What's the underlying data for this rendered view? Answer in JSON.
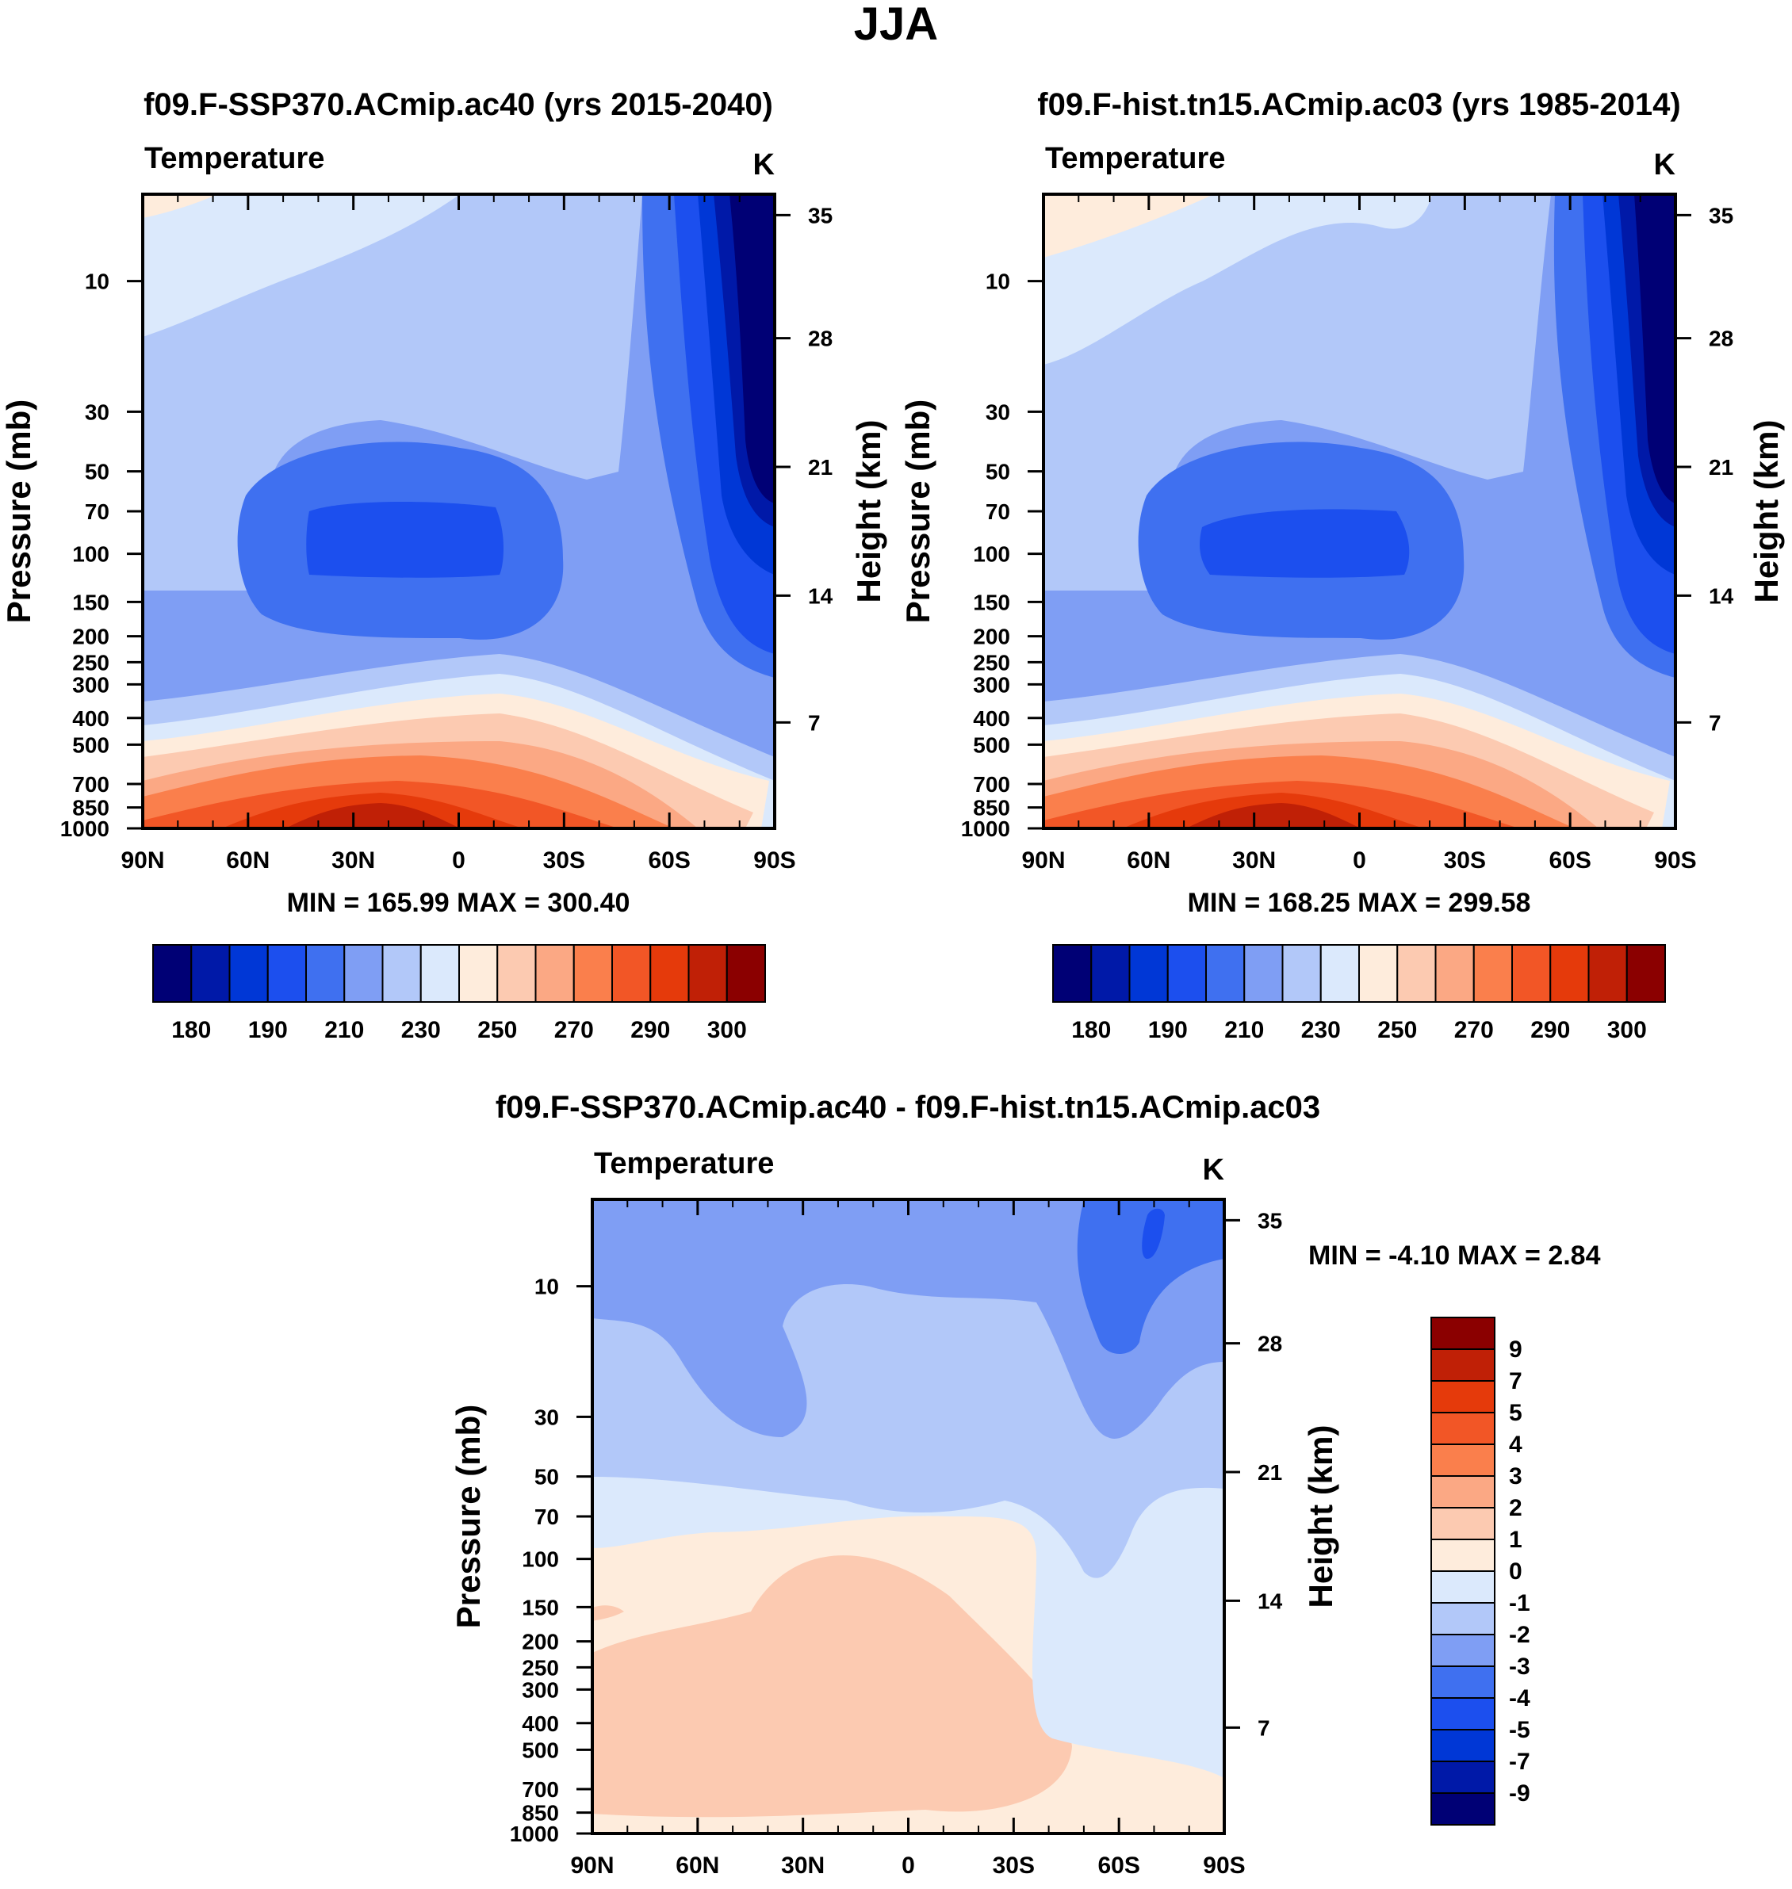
{
  "title": "JJA",
  "colors": {
    "abs": [
      "#000075",
      "#0019a8",
      "#0037d6",
      "#1c4fee",
      "#3f70f0",
      "#7f9ef4",
      "#b2c8f9",
      "#dbe9fc",
      "#feecdc",
      "#fccab1",
      "#fba884",
      "#fa7f4c",
      "#f25626",
      "#e53a0b",
      "#c02006",
      "#8b0000"
    ],
    "diff": [
      "#000075",
      "#0019a8",
      "#0037d6",
      "#1c4fee",
      "#3f70f0",
      "#7f9ef4",
      "#b2c8f9",
      "#dbe9fc",
      "#feecdc",
      "#fccab1",
      "#fba884",
      "#fa7f4c",
      "#f25626",
      "#e53a0b",
      "#c02006",
      "#8b0000"
    ]
  },
  "chart_data": [
    {
      "type": "heatmap",
      "id": "ssp370",
      "title": "f09.F-SSP370.ACmip.ac40 (yrs 2015-2040)",
      "variable": "Temperature",
      "units": "K",
      "xlabel": "",
      "ylabel": "Pressure (mb)",
      "ylabel_right": "Height (km)",
      "x_ticks": [
        "90N",
        "60N",
        "30N",
        "0",
        "30S",
        "60S",
        "90S"
      ],
      "pressure_ticks": [
        "10",
        "30",
        "50",
        "70",
        "100",
        "150",
        "200",
        "250",
        "300",
        "400",
        "500",
        "700",
        "850",
        "1000"
      ],
      "height_ticks": [
        "35",
        "28",
        "21",
        "14",
        "7"
      ],
      "stats": "MIN = 165.99  MAX = 300.40",
      "colorbar_labels": [
        "180",
        "190",
        "210",
        "230",
        "250",
        "270",
        "290",
        "300"
      ],
      "levels": [
        175,
        180,
        185,
        190,
        200,
        210,
        220,
        230,
        240,
        250,
        260,
        270,
        280,
        290,
        295,
        300
      ],
      "min": 165.99,
      "max": 300.4
    },
    {
      "type": "heatmap",
      "id": "hist",
      "title": "f09.F-hist.tn15.ACmip.ac03 (yrs 1985-2014)",
      "variable": "Temperature",
      "units": "K",
      "xlabel": "",
      "ylabel": "Pressure (mb)",
      "ylabel_right": "Height (km)",
      "x_ticks": [
        "90N",
        "60N",
        "30N",
        "0",
        "30S",
        "60S",
        "90S"
      ],
      "pressure_ticks": [
        "10",
        "30",
        "50",
        "70",
        "100",
        "150",
        "200",
        "250",
        "300",
        "400",
        "500",
        "700",
        "850",
        "1000"
      ],
      "height_ticks": [
        "35",
        "28",
        "21",
        "14",
        "7"
      ],
      "stats": "MIN = 168.25  MAX = 299.58",
      "colorbar_labels": [
        "180",
        "190",
        "210",
        "230",
        "250",
        "270",
        "290",
        "300"
      ],
      "levels": [
        175,
        180,
        185,
        190,
        200,
        210,
        220,
        230,
        240,
        250,
        260,
        270,
        280,
        290,
        295,
        300
      ],
      "min": 168.25,
      "max": 299.58
    },
    {
      "type": "heatmap",
      "id": "diff",
      "title": "f09.F-SSP370.ACmip.ac40 - f09.F-hist.tn15.ACmip.ac03",
      "variable": "Temperature",
      "units": "K",
      "xlabel": "",
      "ylabel": "Pressure (mb)",
      "ylabel_right": "Height (km)",
      "x_ticks": [
        "90N",
        "60N",
        "30N",
        "0",
        "30S",
        "60S",
        "90S"
      ],
      "pressure_ticks": [
        "10",
        "30",
        "50",
        "70",
        "100",
        "150",
        "200",
        "250",
        "300",
        "400",
        "500",
        "700",
        "850",
        "1000"
      ],
      "height_ticks": [
        "35",
        "28",
        "21",
        "14",
        "7"
      ],
      "stats": "MIN =  -4.10  MAX =   2.84",
      "colorbar_labels": [
        "9",
        "7",
        "5",
        "4",
        "3",
        "2",
        "1",
        "0",
        "-1",
        "-2",
        "-3",
        "-4",
        "-5",
        "-7",
        "-9"
      ],
      "min": -4.1,
      "max": 2.84
    }
  ]
}
